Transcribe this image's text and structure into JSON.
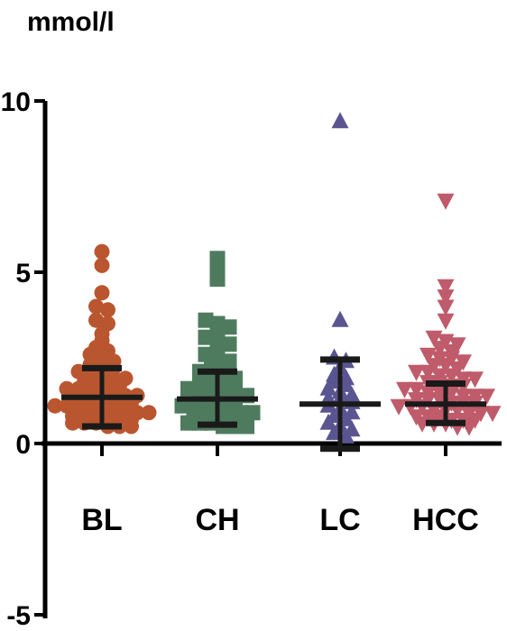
{
  "chart_data": {
    "type": "scatter",
    "title": "",
    "ylabel": "mmol/l",
    "xlabel": "",
    "ylim": [
      -5,
      10
    ],
    "yticks": [
      -5,
      0,
      5,
      10
    ],
    "grid": false,
    "categories": [
      "BL",
      "CH",
      "LC",
      "HCC"
    ],
    "series": [
      {
        "category": "BL",
        "marker": "circle",
        "color": "#b9562f",
        "mean": 1.35,
        "sd_low": 0.5,
        "sd_high": 2.2,
        "values": [
          5.6,
          5.2,
          4.4,
          4.0,
          3.9,
          3.6,
          3.5,
          3.2,
          3.0,
          2.8,
          2.7,
          2.6,
          2.5,
          2.4,
          2.3,
          2.2,
          2.2,
          2.1,
          2.0,
          2.0,
          1.9,
          1.9,
          1.8,
          1.8,
          1.7,
          1.7,
          1.6,
          1.6,
          1.5,
          1.5,
          1.5,
          1.4,
          1.4,
          1.3,
          1.3,
          1.3,
          1.2,
          1.2,
          1.2,
          1.1,
          1.1,
          1.1,
          1.0,
          1.0,
          1.0,
          0.9,
          0.9,
          0.9,
          0.8,
          0.8,
          0.8,
          0.7,
          0.7,
          0.7,
          0.6,
          0.6,
          0.6,
          0.5,
          0.5,
          0.5
        ]
      },
      {
        "category": "CH",
        "marker": "square",
        "color": "#4e7b5e",
        "mean": 1.3,
        "sd_low": 0.55,
        "sd_high": 2.1,
        "values": [
          5.4,
          5.0,
          4.8,
          3.6,
          3.5,
          3.4,
          3.2,
          3.1,
          3.0,
          2.9,
          2.8,
          2.6,
          2.5,
          2.4,
          2.3,
          2.2,
          2.1,
          2.0,
          2.0,
          1.9,
          1.8,
          1.8,
          1.7,
          1.7,
          1.6,
          1.6,
          1.5,
          1.5,
          1.4,
          1.4,
          1.3,
          1.3,
          1.2,
          1.2,
          1.1,
          1.1,
          1.0,
          1.0,
          1.0,
          0.9,
          0.9,
          0.8,
          0.8,
          0.7,
          0.7,
          0.7,
          0.6,
          0.6,
          0.6,
          0.5,
          0.5,
          0.5
        ]
      },
      {
        "category": "LC",
        "marker": "triangle-up",
        "color": "#5a5591",
        "mean": 1.15,
        "sd_low": -0.15,
        "sd_high": 2.45,
        "values": [
          9.4,
          3.6,
          2.5,
          2.4,
          2.2,
          2.0,
          1.9,
          1.8,
          1.7,
          1.6,
          1.5,
          1.4,
          1.3,
          1.3,
          1.2,
          1.1,
          1.0,
          0.9,
          0.8,
          0.7,
          0.6,
          0.5,
          0.4,
          0.3,
          0.2
        ]
      },
      {
        "category": "HCC",
        "marker": "triangle-down",
        "color": "#bf5b6a",
        "mean": 1.15,
        "sd_low": 0.6,
        "sd_high": 1.75,
        "values": [
          7.1,
          4.6,
          4.3,
          4.0,
          3.6,
          3.1,
          3.0,
          2.9,
          2.8,
          2.7,
          2.6,
          2.5,
          2.5,
          2.4,
          2.3,
          2.3,
          2.2,
          2.1,
          2.1,
          2.0,
          2.0,
          1.9,
          1.9,
          1.8,
          1.8,
          1.7,
          1.7,
          1.6,
          1.6,
          1.5,
          1.5,
          1.5,
          1.4,
          1.4,
          1.4,
          1.3,
          1.3,
          1.3,
          1.2,
          1.2,
          1.2,
          1.1,
          1.1,
          1.1,
          1.0,
          1.0,
          1.0,
          0.9,
          0.9,
          0.9,
          0.8,
          0.8,
          0.8,
          0.7,
          0.7,
          0.7,
          0.6,
          0.6,
          0.6,
          0.5,
          0.5
        ]
      }
    ]
  }
}
